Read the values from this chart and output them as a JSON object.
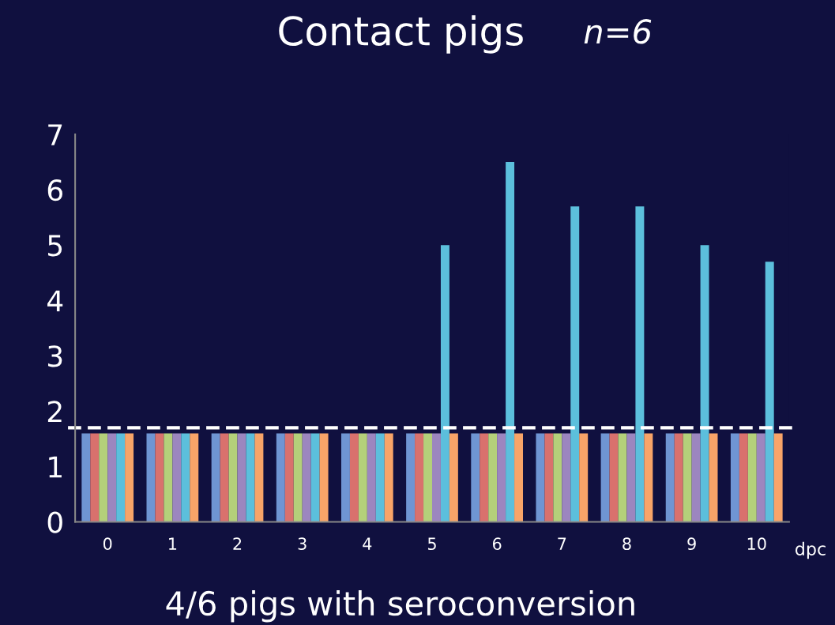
{
  "chart_data": {
    "type": "bar",
    "title": "Contact pigs",
    "subtitle": "n=6",
    "xlabel": "dpc",
    "categories": [
      "0",
      "1",
      "2",
      "3",
      "4",
      "5",
      "6",
      "7",
      "8",
      "9",
      "10"
    ],
    "series": [
      {
        "color": "#6f95d3",
        "values": [
          1.6,
          1.6,
          1.6,
          1.6,
          1.6,
          1.6,
          1.6,
          1.6,
          1.6,
          1.6,
          1.6
        ]
      },
      {
        "color": "#d9716d",
        "values": [
          1.6,
          1.6,
          1.6,
          1.6,
          1.6,
          1.6,
          1.6,
          1.6,
          1.6,
          1.6,
          1.6
        ]
      },
      {
        "color": "#b4d07a",
        "values": [
          1.6,
          1.6,
          1.6,
          1.6,
          1.6,
          1.6,
          1.6,
          1.6,
          1.6,
          1.6,
          1.6
        ]
      },
      {
        "color": "#9c86bf",
        "values": [
          1.6,
          1.6,
          1.6,
          1.6,
          1.6,
          1.6,
          1.6,
          1.6,
          1.6,
          1.6,
          1.6
        ]
      },
      {
        "color": "#5cbfdc",
        "values": [
          1.6,
          1.6,
          1.6,
          1.6,
          1.6,
          5.0,
          6.5,
          5.7,
          5.7,
          5.0,
          4.7
        ]
      },
      {
        "color": "#f8a468",
        "values": [
          1.6,
          1.6,
          1.6,
          1.6,
          1.6,
          1.6,
          1.6,
          1.6,
          1.6,
          1.6,
          1.6
        ]
      }
    ],
    "ylim": [
      0,
      7
    ],
    "yticks": [
      0,
      1,
      2,
      3,
      4,
      5,
      6,
      7
    ],
    "grid": false,
    "legend": false,
    "ref_lines": [
      {
        "axis": "y",
        "value": 1.7,
        "color": "#ffffff",
        "line_style": "dashed"
      }
    ],
    "annotations": [
      "4/6 pigs with seroconversion"
    ]
  }
}
